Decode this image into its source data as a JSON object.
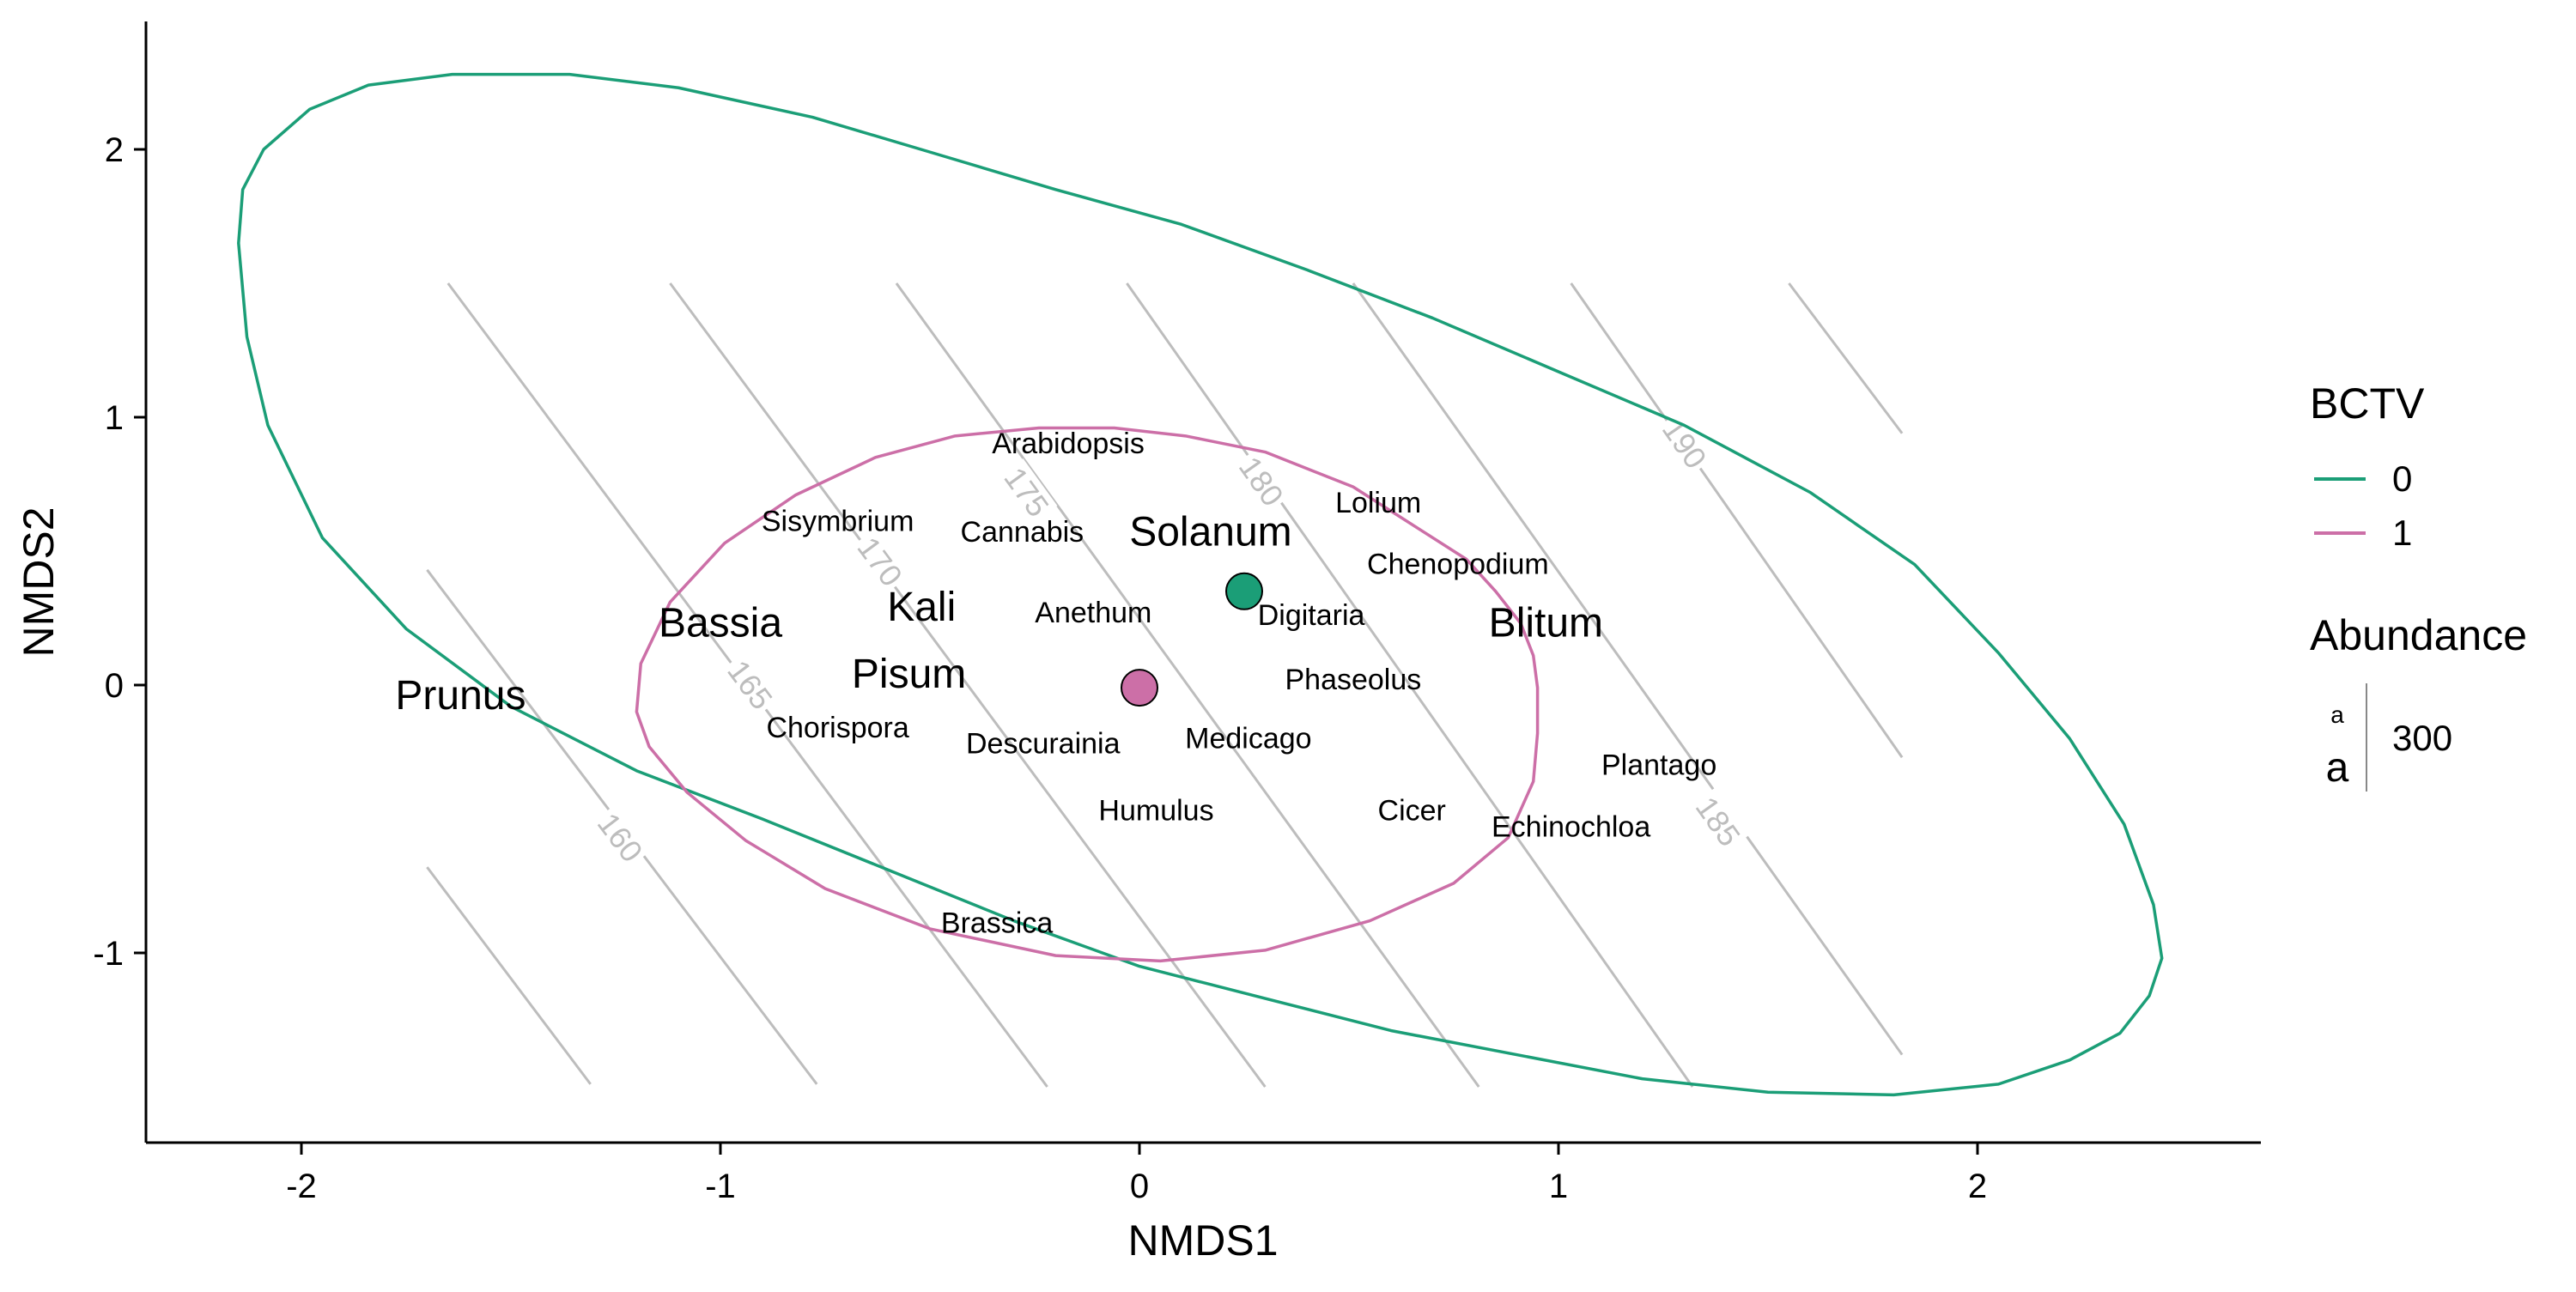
{
  "chart_data": {
    "type": "scatter",
    "xlabel": "NMDS1",
    "ylabel": "NMDS2",
    "xlim": [
      -2.4,
      2.65
    ],
    "ylim": [
      -1.71,
      2.47
    ],
    "x_ticks": [
      -2,
      -1,
      0,
      1,
      2
    ],
    "y_ticks": [
      -1,
      0,
      1,
      2
    ],
    "x_tick_labels": [
      "-2",
      "-1",
      "0",
      "1",
      "2"
    ],
    "y_tick_labels": [
      "-1",
      "0",
      "1",
      "2"
    ],
    "grid": false,
    "legend_position": "right",
    "colors": {
      "bctv_0": "#1b9e77",
      "bctv_1": "#cc6fa7",
      "contour": "#bdbdbd",
      "axis": "#000000",
      "label_text": "#000000"
    },
    "legend": {
      "title": "BCTV",
      "entries": [
        {
          "label": "0",
          "color": "#1b9e77"
        },
        {
          "label": "1",
          "color": "#cc6fa7"
        }
      ],
      "size_title": "Abundance",
      "size_small_glyph": "a",
      "size_large_glyph": "a",
      "size_value": "300"
    },
    "centroids": [
      {
        "group": "0",
        "x": 0.25,
        "y": 0.35,
        "color": "#1b9e77"
      },
      {
        "group": "1",
        "x": 0.0,
        "y": -0.01,
        "color": "#cc6fa7"
      }
    ],
    "ellipses": [
      {
        "group": "0",
        "color": "#1b9e77",
        "points": [
          [
            -1.64,
            2.28
          ],
          [
            -1.36,
            2.28
          ],
          [
            -1.1,
            2.23
          ],
          [
            -0.78,
            2.12
          ],
          [
            -0.5,
            1.99
          ],
          [
            -0.2,
            1.85
          ],
          [
            0.1,
            1.72
          ],
          [
            0.4,
            1.55
          ],
          [
            0.7,
            1.37
          ],
          [
            1.0,
            1.17
          ],
          [
            1.3,
            0.97
          ],
          [
            1.6,
            0.72
          ],
          [
            1.85,
            0.45
          ],
          [
            2.05,
            0.12
          ],
          [
            2.22,
            -0.2
          ],
          [
            2.35,
            -0.52
          ],
          [
            2.42,
            -0.82
          ],
          [
            2.44,
            -1.02
          ],
          [
            2.41,
            -1.16
          ],
          [
            2.34,
            -1.3
          ],
          [
            2.22,
            -1.4
          ],
          [
            2.05,
            -1.49
          ],
          [
            1.8,
            -1.53
          ],
          [
            1.5,
            -1.52
          ],
          [
            1.2,
            -1.47
          ],
          [
            0.9,
            -1.38
          ],
          [
            0.6,
            -1.29
          ],
          [
            0.3,
            -1.17
          ],
          [
            0.0,
            -1.05
          ],
          [
            -0.3,
            -0.88
          ],
          [
            -0.6,
            -0.69
          ],
          [
            -0.9,
            -0.5
          ],
          [
            -1.2,
            -0.32
          ],
          [
            -1.5,
            -0.08
          ],
          [
            -1.75,
            0.21
          ],
          [
            -1.95,
            0.55
          ],
          [
            -2.08,
            0.97
          ],
          [
            -2.13,
            1.3
          ],
          [
            -2.15,
            1.65
          ],
          [
            -2.14,
            1.85
          ],
          [
            -2.09,
            2.0
          ],
          [
            -1.98,
            2.15
          ],
          [
            -1.84,
            2.24
          ],
          [
            -1.64,
            2.28
          ]
        ]
      },
      {
        "group": "1",
        "color": "#cc6fa7",
        "points": [
          [
            0.95,
            -0.01
          ],
          [
            0.94,
            0.11
          ],
          [
            0.91,
            0.23
          ],
          [
            0.85,
            0.35
          ],
          [
            0.78,
            0.47
          ],
          [
            0.67,
            0.58
          ],
          [
            0.51,
            0.74
          ],
          [
            0.3,
            0.87
          ],
          [
            0.11,
            0.93
          ],
          [
            -0.06,
            0.96
          ],
          [
            -0.24,
            0.96
          ],
          [
            -0.44,
            0.93
          ],
          [
            -0.63,
            0.85
          ],
          [
            -0.82,
            0.71
          ],
          [
            -0.99,
            0.53
          ],
          [
            -1.12,
            0.31
          ],
          [
            -1.19,
            0.08
          ],
          [
            -1.2,
            -0.1
          ],
          [
            -1.17,
            -0.23
          ],
          [
            -1.08,
            -0.4
          ],
          [
            -0.94,
            -0.58
          ],
          [
            -0.75,
            -0.76
          ],
          [
            -0.5,
            -0.91
          ],
          [
            -0.2,
            -1.01
          ],
          [
            0.05,
            -1.03
          ],
          [
            0.3,
            -0.99
          ],
          [
            0.55,
            -0.88
          ],
          [
            0.75,
            -0.74
          ],
          [
            0.88,
            -0.57
          ],
          [
            0.94,
            -0.36
          ],
          [
            0.95,
            -0.18
          ],
          [
            0.95,
            -0.01
          ]
        ]
      }
    ],
    "contours": [
      {
        "label": "160",
        "label_x": -1.24,
        "label_y": -0.57,
        "points": [
          [
            -1.7,
            0.43
          ],
          [
            -0.77,
            -1.49
          ]
        ]
      },
      {
        "label": "165",
        "label_x": -0.93,
        "label_y": 0.0,
        "points": [
          [
            -1.65,
            1.5
          ],
          [
            -0.22,
            -1.5
          ]
        ]
      },
      {
        "label": "170",
        "label_x": -0.62,
        "label_y": 0.46,
        "points": [
          [
            -1.12,
            1.5
          ],
          [
            0.3,
            -1.5
          ]
        ]
      },
      {
        "label": "175",
        "label_x": -0.27,
        "label_y": 0.72,
        "points": [
          [
            -0.58,
            1.5
          ],
          [
            0.81,
            -1.5
          ]
        ]
      },
      {
        "label": "180",
        "label_x": 0.29,
        "label_y": 0.76,
        "points": [
          [
            -0.03,
            1.5
          ],
          [
            1.32,
            -1.5
          ]
        ]
      },
      {
        "label": "185",
        "label_x": 1.38,
        "label_y": -0.51,
        "points": [
          [
            0.51,
            1.5
          ],
          [
            1.82,
            -1.38
          ]
        ]
      },
      {
        "label": "190",
        "label_x": 1.3,
        "label_y": 0.9,
        "points": [
          [
            1.03,
            1.5
          ],
          [
            1.82,
            -0.27
          ]
        ]
      },
      {
        "label": "",
        "label_x": 0,
        "label_y": 0,
        "points": [
          [
            -1.7,
            -0.68
          ],
          [
            -1.31,
            -1.49
          ]
        ]
      },
      {
        "label": "",
        "label_x": 0,
        "label_y": 0,
        "points": [
          [
            1.55,
            1.5
          ],
          [
            1.82,
            0.94
          ]
        ]
      }
    ],
    "species": [
      {
        "name": "Prunus",
        "x": -1.62,
        "y": -0.04,
        "size": "large"
      },
      {
        "name": "Bassia",
        "x": -1.0,
        "y": 0.23,
        "size": "large"
      },
      {
        "name": "Kali",
        "x": -0.52,
        "y": 0.29,
        "size": "large"
      },
      {
        "name": "Pisum",
        "x": -0.55,
        "y": 0.04,
        "size": "large"
      },
      {
        "name": "Solanum",
        "x": 0.17,
        "y": 0.57,
        "size": "large"
      },
      {
        "name": "Blitum",
        "x": 0.97,
        "y": 0.23,
        "size": "large"
      },
      {
        "name": "Arabidopsis",
        "x": -0.17,
        "y": 0.9,
        "size": "small"
      },
      {
        "name": "Sisymbrium",
        "x": -0.72,
        "y": 0.61,
        "size": "small"
      },
      {
        "name": "Cannabis",
        "x": -0.28,
        "y": 0.57,
        "size": "small"
      },
      {
        "name": "Lolium",
        "x": 0.57,
        "y": 0.68,
        "size": "small"
      },
      {
        "name": "Chenopodium",
        "x": 0.76,
        "y": 0.45,
        "size": "small"
      },
      {
        "name": "Anethum",
        "x": -0.11,
        "y": 0.27,
        "size": "small"
      },
      {
        "name": "Digitaria",
        "x": 0.41,
        "y": 0.26,
        "size": "small"
      },
      {
        "name": "Phaseolus",
        "x": 0.51,
        "y": 0.02,
        "size": "small"
      },
      {
        "name": "Chorispora",
        "x": -0.72,
        "y": -0.16,
        "size": "small"
      },
      {
        "name": "Descurainia",
        "x": -0.23,
        "y": -0.22,
        "size": "small"
      },
      {
        "name": "Medicago",
        "x": 0.26,
        "y": -0.2,
        "size": "small"
      },
      {
        "name": "Plantago",
        "x": 1.24,
        "y": -0.3,
        "size": "small"
      },
      {
        "name": "Humulus",
        "x": 0.04,
        "y": -0.47,
        "size": "small"
      },
      {
        "name": "Cicer",
        "x": 0.65,
        "y": -0.47,
        "size": "small"
      },
      {
        "name": "Echinochloa",
        "x": 1.03,
        "y": -0.53,
        "size": "small"
      },
      {
        "name": "Brassica",
        "x": -0.34,
        "y": -0.89,
        "size": "small"
      }
    ]
  }
}
